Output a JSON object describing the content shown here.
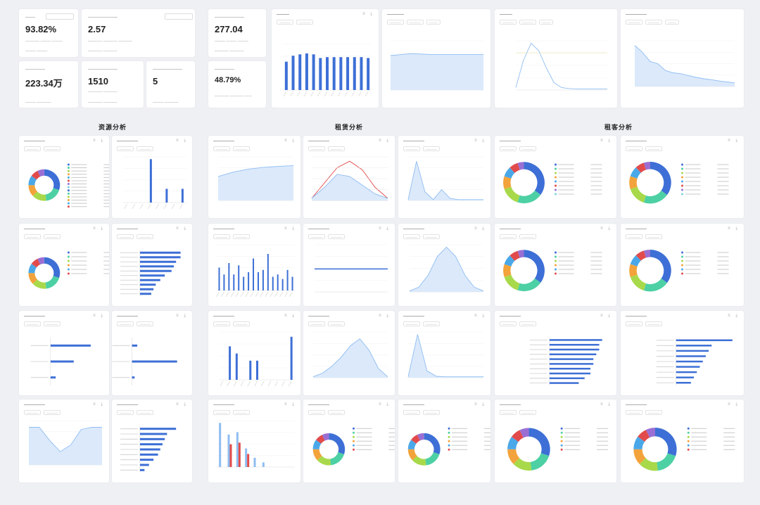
{
  "kpi": [
    {
      "value": "93.82%"
    },
    {
      "value": "2.57"
    },
    {
      "value": "277.04"
    },
    {
      "value": "223.34万"
    },
    {
      "value": "1510"
    },
    {
      "value": "5"
    },
    {
      "value": "48.79%"
    }
  ],
  "sections": {
    "resource": "资源分析",
    "rent": "租赁分析",
    "tenant": "租客分析"
  },
  "colors": {
    "accent": "#3d6fd6",
    "light_blue": "#8fbdf1",
    "area_fill": "#dbe9fb",
    "red": "#e24b4b",
    "green": "#4dd0a4",
    "lime": "#a8d94a",
    "orange": "#f3a33b",
    "indigo": "#5563d9"
  }
}
